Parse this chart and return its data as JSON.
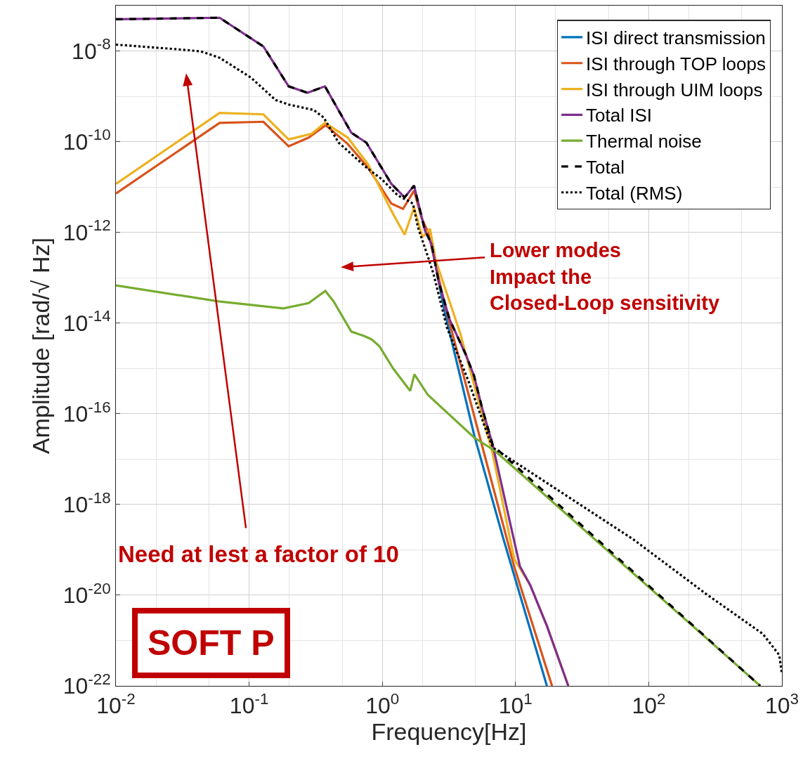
{
  "chart_data": {
    "type": "line",
    "xlabel": "Frequency[Hz]",
    "ylabel": "Amplitude [rad/√ Hz]",
    "log": "xy",
    "grid": true,
    "legend": "top right",
    "xlim": [
      0.01,
      1000
    ],
    "ylim": [
      1e-22,
      1e-07
    ],
    "xticks": [
      {
        "value": 0.01,
        "label": "10$^{-2}$"
      },
      {
        "value": 0.1,
        "label": "10$^{-1}$"
      },
      {
        "value": 1,
        "label": "10$^{0}$"
      },
      {
        "value": 10,
        "label": "10$^{1}$"
      },
      {
        "value": 100,
        "label": "10$^{2}$"
      },
      {
        "value": 1000,
        "label": "10$^{3}$"
      }
    ],
    "yticks": [
      {
        "value": 1e-22,
        "label": "10$^{-22}$"
      },
      {
        "value": 1e-20,
        "label": "10$^{-20}$"
      },
      {
        "value": 1e-18,
        "label": "10$^{-18}$"
      },
      {
        "value": 1e-16,
        "label": "10$^{-16}$"
      },
      {
        "value": 1e-14,
        "label": "10$^{-14}$"
      },
      {
        "value": 1e-12,
        "label": "10$^{-12}$"
      },
      {
        "value": 1e-10,
        "label": "10$^{-10}$"
      },
      {
        "value": 1e-08,
        "label": "10$^{-8}$"
      }
    ],
    "series": [
      {
        "name": "ISI direct transmission",
        "color": "#0072bd",
        "line_style": "solid",
        "x": [
          2.34,
          2.9,
          4.88,
          8.13,
          17.2
        ],
        "values": [
          5.6e-13,
          2.1e-14,
          3.5e-17,
          1.7e-19,
          1e-22
        ]
      },
      {
        "name": "ISI through TOP loops",
        "color": "#d95319",
        "line_style": "solid",
        "x": [
          0.01,
          0.06,
          0.128,
          0.198,
          0.28,
          0.376,
          0.55,
          0.78,
          1.17,
          1.43,
          1.73,
          1.97,
          2.21,
          2.95,
          5.33,
          9.77,
          18.8
        ],
        "values": [
          7.2e-12,
          2.6e-10,
          2.75e-10,
          7.9e-11,
          1.23e-10,
          2.3e-10,
          8.9e-11,
          2.7e-11,
          4.3e-12,
          3.3e-12,
          8.3e-12,
          2.1e-12,
          1e-12,
          2.5e-14,
          3.5e-17,
          4.3e-20,
          1e-22
        ]
      },
      {
        "name": "ISI through UIM loops",
        "color": "#edb120",
        "line_style": "solid",
        "x": [
          0.01,
          0.06,
          0.128,
          0.198,
          0.295,
          0.371,
          0.55,
          0.78,
          1.17,
          1.47,
          1.73,
          2.0,
          2.28,
          2.52,
          3.84,
          6.76,
          9.77,
          12.9,
          17.2,
          24.9
        ],
        "values": [
          1.17e-11,
          4.3e-10,
          4e-10,
          1.12e-10,
          1.5e-10,
          2.6e-10,
          1.23e-10,
          3.2e-11,
          3e-12,
          8.9e-13,
          3.5e-12,
          7.9e-13,
          1.2e-12,
          2.4e-13,
          6e-15,
          1.26e-17,
          6.3e-20,
          1.66e-20,
          2.1e-21,
          1e-22
        ]
      },
      {
        "name": "Total ISI",
        "color": "#7e2f8e",
        "line_style": "solid",
        "x": [
          0.01,
          0.06,
          0.128,
          0.198,
          0.274,
          0.371,
          0.585,
          0.759,
          1.17,
          1.47,
          1.73,
          2.09,
          2.34,
          2.65,
          3.2,
          4.24,
          4.88,
          5.61,
          6.76,
          8.95,
          10.8,
          12.9,
          17.2,
          24.9
        ],
        "values": [
          5e-08,
          5.4e-08,
          1.26e-08,
          1.66e-09,
          1.2e-09,
          1.66e-09,
          1.58e-10,
          9.5e-11,
          1.17e-11,
          5.9e-12,
          1.07e-11,
          1.1e-12,
          5.6e-13,
          8.1e-14,
          1.2e-14,
          2e-15,
          6.9e-16,
          1.35e-16,
          2e-17,
          4.9e-19,
          4.3e-20,
          1.66e-20,
          2.1e-21,
          1e-22
        ]
      },
      {
        "name": "Thermal noise",
        "color": "#77ac30",
        "line_style": "solid",
        "x": [
          0.01,
          0.059,
          0.181,
          0.28,
          0.373,
          0.431,
          0.585,
          0.728,
          0.828,
          0.95,
          1.21,
          1.62,
          1.74,
          2.2,
          4.88,
          7.05,
          687
        ],
        "values": [
          6.8e-14,
          3e-14,
          2.1e-14,
          2.75e-14,
          5.1e-14,
          3e-14,
          6.5e-15,
          5.2e-15,
          4.4e-15,
          3.1e-15,
          9.8e-16,
          3.2e-16,
          7.4e-16,
          2.6e-16,
          3e-17,
          1.5e-17,
          1e-22
        ]
      },
      {
        "name": "Total",
        "color": "#000000",
        "line_style": "dashed",
        "x": [
          0.01,
          0.06,
          0.128,
          0.198,
          0.274,
          0.371,
          0.585,
          0.759,
          1.17,
          1.47,
          1.73,
          2.09,
          2.34,
          2.65,
          3.2,
          4.24,
          4.88,
          5.61,
          6.76,
          687
        ],
        "values": [
          5e-08,
          5.4e-08,
          1.26e-08,
          1.66e-09,
          1.2e-09,
          1.66e-09,
          1.58e-10,
          9.5e-11,
          1.17e-11,
          5.9e-12,
          1.07e-11,
          1.1e-12,
          5.6e-13,
          8.1e-14,
          1.2e-14,
          2e-15,
          6.9e-16,
          1.35e-16,
          2e-17,
          1e-22
        ]
      },
      {
        "name": "Total (RMS)",
        "color": "#000000",
        "line_style": "dotted",
        "x": [
          0.01,
          0.028,
          0.0434,
          0.06,
          0.103,
          0.158,
          0.198,
          0.305,
          0.363,
          0.47,
          0.759,
          0.986,
          1.31,
          1.56,
          1.7,
          1.85,
          2.21,
          2.42,
          3.05,
          4.44,
          6.17,
          6.76,
          76.6,
          269,
          719,
          955,
          1000
        ],
        "values": [
          1.38e-08,
          1.1e-08,
          9.8e-09,
          7.1e-09,
          2.6e-09,
          8.3e-10,
          6.6e-10,
          5e-10,
          3.4e-10,
          9.5e-11,
          2.7e-11,
          1.5e-11,
          6.5e-12,
          5e-12,
          4.3e-12,
          1.3e-12,
          2.8e-13,
          1.23e-13,
          8.1e-15,
          5.2e-16,
          3.5e-17,
          1.8e-17,
          1.7e-19,
          1.07e-20,
          1.4e-21,
          4.8e-22,
          1.8e-22
        ]
      }
    ],
    "annotations": [
      "Lower modes\nImpact the\nClosed-Loop sensitivity",
      "Need at lest a factor of 10",
      "SOFT P"
    ]
  }
}
